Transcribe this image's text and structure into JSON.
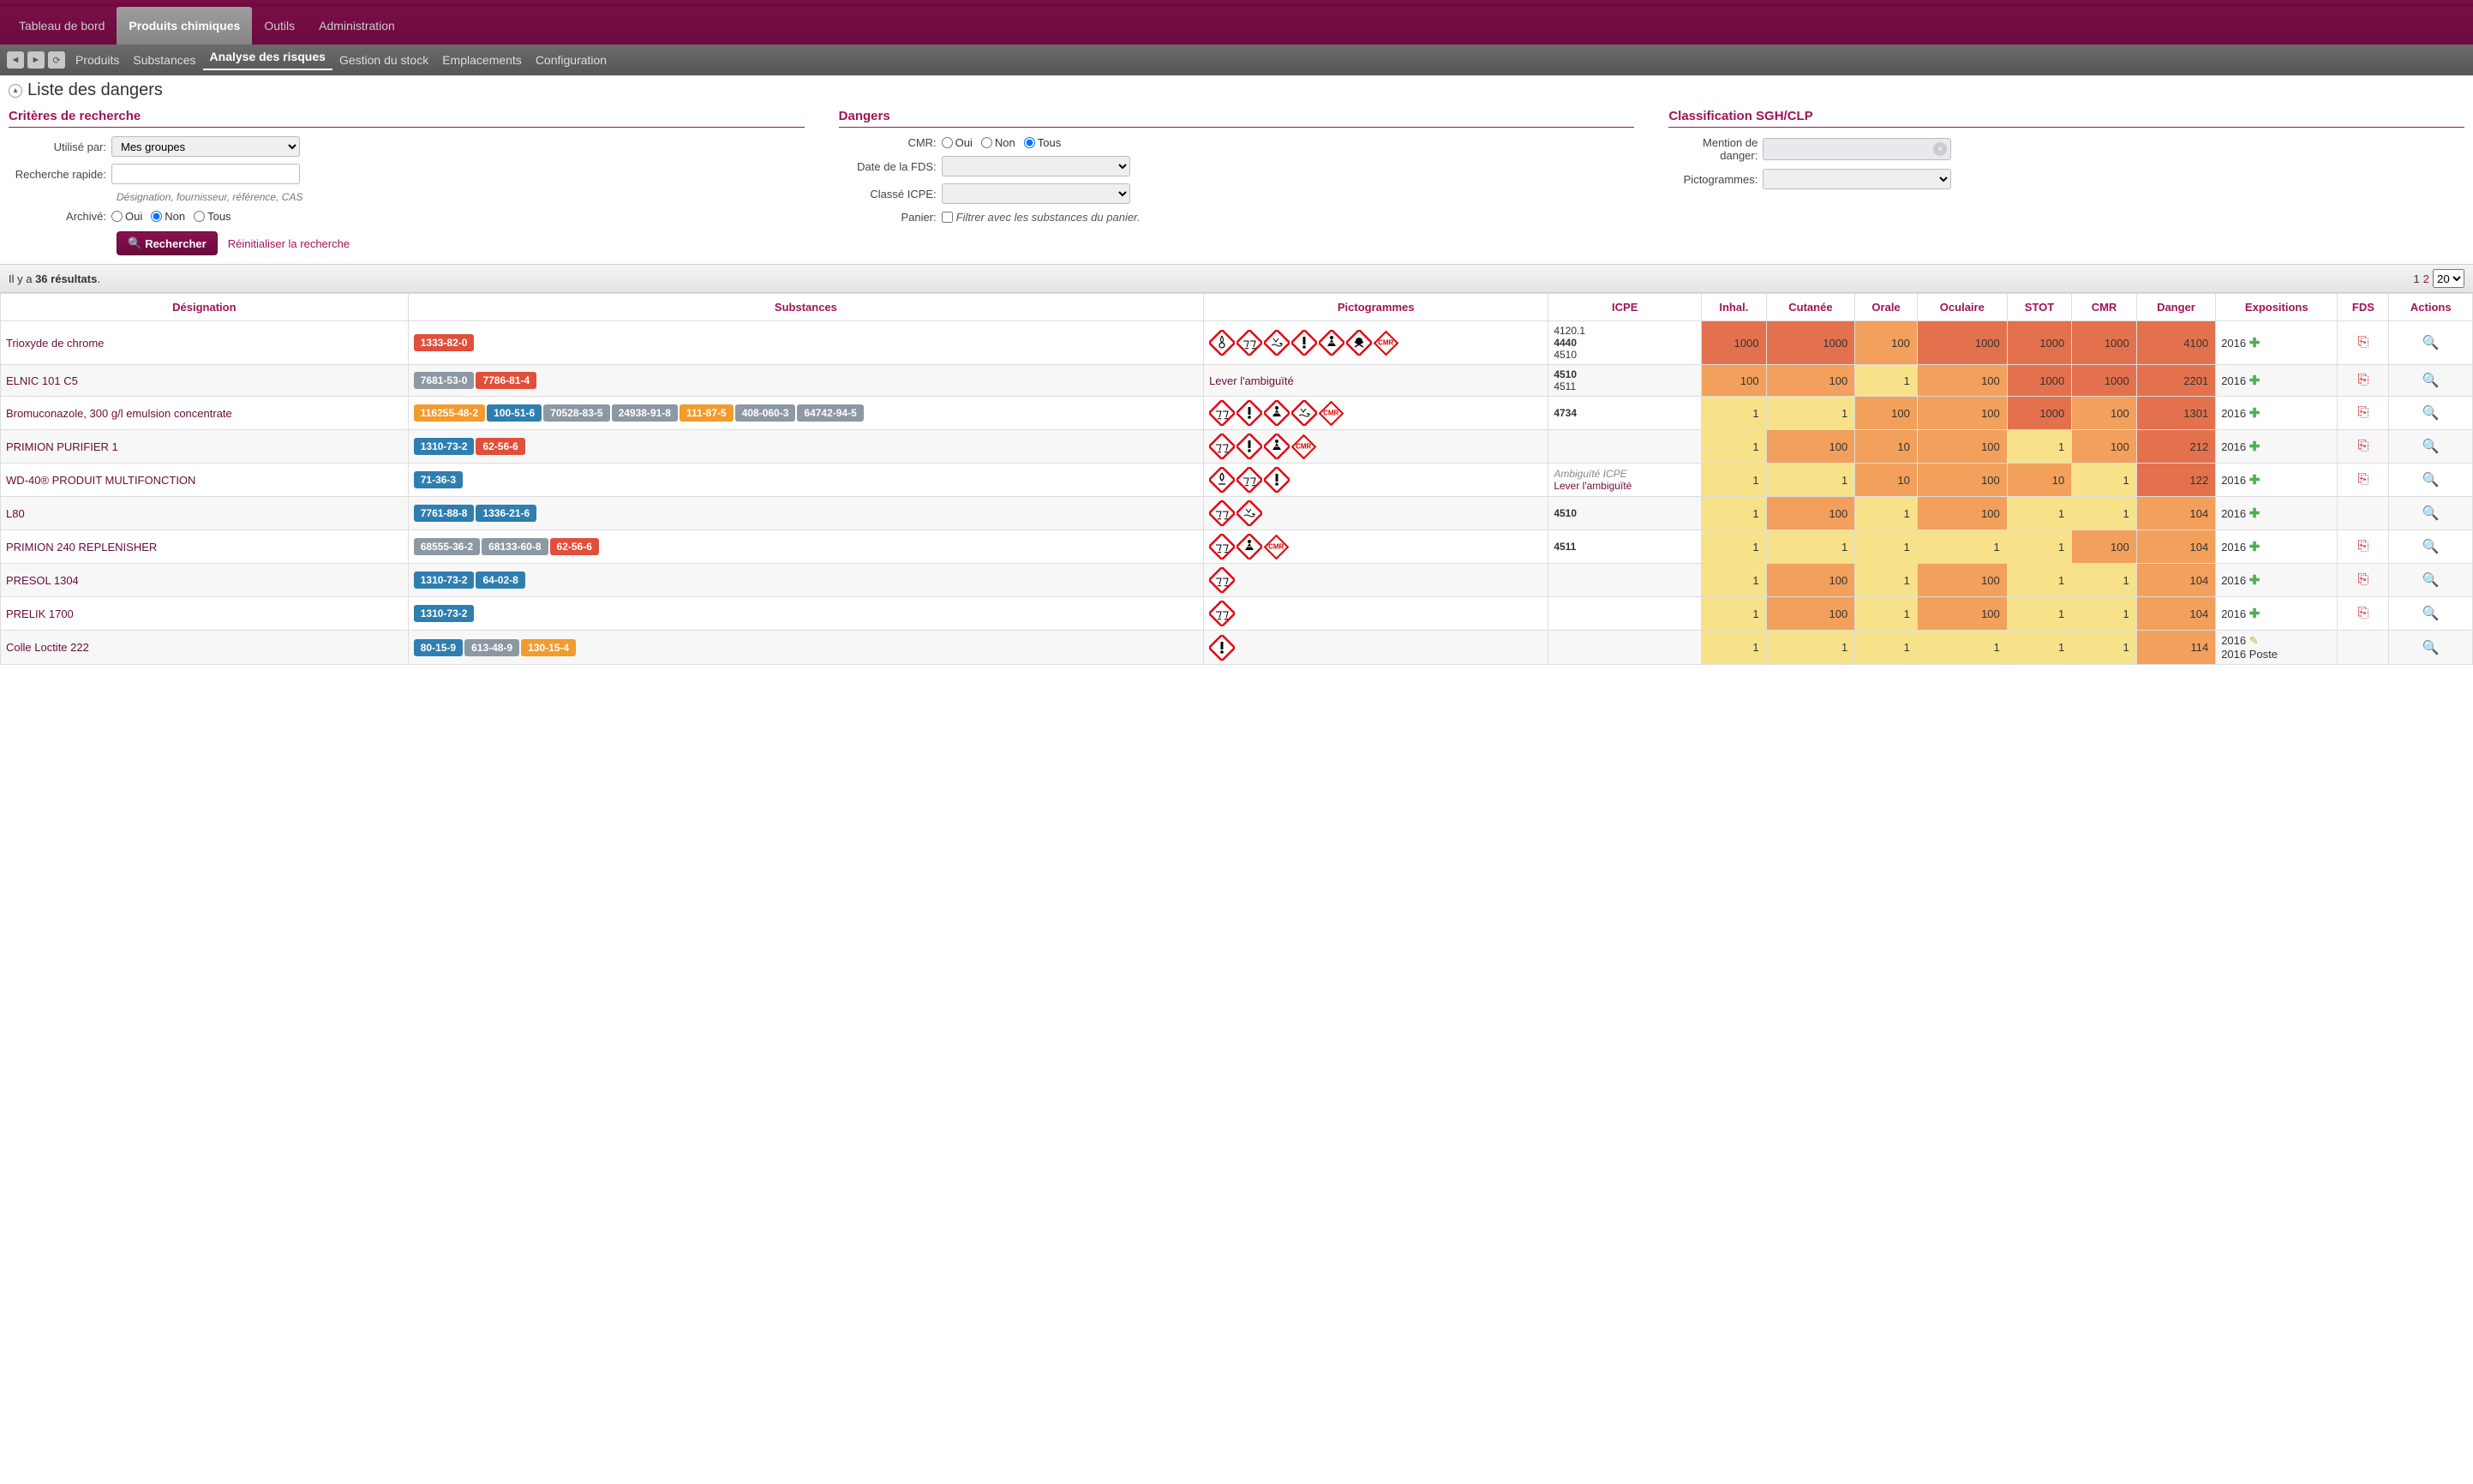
{
  "nav": {
    "main_tabs": [
      "Tableau de bord",
      "Produits chimiques",
      "Outils",
      "Administration"
    ],
    "main_active": 1,
    "sub_tabs": [
      "Produits",
      "Substances",
      "Analyse des risques",
      "Gestion du stock",
      "Emplacements",
      "Configuration"
    ],
    "sub_active": 2
  },
  "page_title": "Liste des dangers",
  "filters": {
    "criteria_heading": "Critères de recherche",
    "used_by_label": "Utilisé par:",
    "used_by_value": "Mes groupes",
    "quick_search_label": "Recherche rapide:",
    "quick_search_hint": "Désignation, fournisseur, référence, CAS",
    "archived_label": "Archivé:",
    "radio_yes": "Oui",
    "radio_no": "Non",
    "radio_all": "Tous",
    "search_button": "Rechercher",
    "reset_link": "Réinitialiser la recherche",
    "dangers_heading": "Dangers",
    "cmr_label": "CMR:",
    "fds_date_label": "Date de la FDS:",
    "icpe_label": "Classé ICPE:",
    "basket_label": "Panier:",
    "basket_checkbox": "Filtrer avec les substances du panier.",
    "sgh_heading": "Classification SGH/CLP",
    "mention_label": "Mention de danger:",
    "picto_label": "Pictogrammes:"
  },
  "results": {
    "prefix": "Il y a ",
    "count": "36 résultats",
    "suffix": ".",
    "page_current": "1",
    "page_next": "2",
    "page_size": "20"
  },
  "table": {
    "headers": {
      "designation": "Désignation",
      "substances": "Substances",
      "pictograms": "Pictogrammes",
      "icpe": "ICPE",
      "inhal": "Inhal.",
      "cutanee": "Cutanée",
      "orale": "Orale",
      "oculaire": "Oculaire",
      "stot": "STOT",
      "cmr": "CMR",
      "danger": "Danger",
      "expositions": "Expositions",
      "fds": "FDS",
      "actions": "Actions"
    }
  },
  "chip_colors": {
    "red": "#e04f3a",
    "orange": "#f29b2e",
    "grey": "#8d98a3",
    "blue": "#2e7fb0"
  },
  "risk_colors": {
    "red": "#e4714d",
    "orange": "#f2a05b",
    "yellow": "#f7e28a"
  },
  "ghs_symbols": {
    "corrosion": "corrosion",
    "skull": "skull",
    "aquatic": "aquatic",
    "exclaim": "exclaim",
    "health": "health",
    "flame": "flame",
    "cmr": "cmr"
  },
  "rows": [
    {
      "designation": "Trioxyde de chrome",
      "substances": [
        {
          "cas": "1333-82-0",
          "c": "red"
        }
      ],
      "pictos": [
        "flame-circle",
        "corrosion",
        "aquatic",
        "exclaim",
        "health",
        "skull",
        "cmr"
      ],
      "icpe": [
        "4120.1",
        "4440",
        "4510"
      ],
      "icpe_bold": 1,
      "risk": {
        "inhal": [
          "1000",
          "red"
        ],
        "cutanee": [
          "1000",
          "red"
        ],
        "orale": [
          "100",
          "orange"
        ],
        "oculaire": [
          "1000",
          "red"
        ],
        "stot": [
          "1000",
          "red"
        ],
        "cmr": [
          "1000",
          "red"
        ],
        "danger": [
          "4100",
          "red"
        ]
      },
      "expo": "2016",
      "expo_plus": true,
      "fds": true
    },
    {
      "designation": "ELNIC 101 C5",
      "substances": [
        {
          "cas": "7681-53-0",
          "c": "grey"
        },
        {
          "cas": "7786-81-4",
          "c": "red"
        }
      ],
      "pictos": [],
      "picto_text": "Lever l'ambiguïté",
      "icpe": [
        "4510",
        "4511"
      ],
      "icpe_bold": 0,
      "risk": {
        "inhal": [
          "100",
          "orange"
        ],
        "cutanee": [
          "100",
          "orange"
        ],
        "orale": [
          "1",
          "yellow"
        ],
        "oculaire": [
          "100",
          "orange"
        ],
        "stot": [
          "1000",
          "red"
        ],
        "cmr": [
          "1000",
          "red"
        ],
        "danger": [
          "2201",
          "red"
        ]
      },
      "expo": "2016",
      "expo_plus": true,
      "fds": true
    },
    {
      "designation": "Bromuconazole, 300 g/l emulsion concentrate",
      "substances": [
        {
          "cas": "116255-48-2",
          "c": "orange"
        },
        {
          "cas": "100-51-6",
          "c": "blue"
        },
        {
          "cas": "70528-83-5",
          "c": "grey"
        },
        {
          "cas": "24938-91-8",
          "c": "grey"
        },
        {
          "cas": "111-87-5",
          "c": "orange"
        },
        {
          "cas": "408-060-3",
          "c": "grey"
        },
        {
          "cas": "64742-94-5",
          "c": "grey"
        }
      ],
      "pictos": [
        "corrosion",
        "exclaim",
        "health",
        "aquatic",
        "cmr"
      ],
      "icpe": [
        "4734"
      ],
      "icpe_bold": 0,
      "risk": {
        "inhal": [
          "1",
          "yellow"
        ],
        "cutanee": [
          "1",
          "yellow"
        ],
        "orale": [
          "100",
          "orange"
        ],
        "oculaire": [
          "100",
          "orange"
        ],
        "stot": [
          "1000",
          "red"
        ],
        "cmr": [
          "100",
          "orange"
        ],
        "danger": [
          "1301",
          "red"
        ]
      },
      "expo": "2016",
      "expo_plus": true,
      "fds": true
    },
    {
      "designation": "PRIMION PURIFIER 1",
      "substances": [
        {
          "cas": "1310-73-2",
          "c": "blue"
        },
        {
          "cas": "62-56-6",
          "c": "red"
        }
      ],
      "pictos": [
        "corrosion",
        "exclaim",
        "health",
        "cmr"
      ],
      "icpe": [],
      "risk": {
        "inhal": [
          "1",
          "yellow"
        ],
        "cutanee": [
          "100",
          "orange"
        ],
        "orale": [
          "10",
          "orange"
        ],
        "oculaire": [
          "100",
          "orange"
        ],
        "stot": [
          "1",
          "yellow"
        ],
        "cmr": [
          "100",
          "orange"
        ],
        "danger": [
          "212",
          "red"
        ]
      },
      "expo": "2016",
      "expo_plus": true,
      "fds": true
    },
    {
      "designation": "WD-40® PRODUIT MULTIFONCTION",
      "substances": [
        {
          "cas": "71-36-3",
          "c": "blue"
        }
      ],
      "pictos": [
        "flame",
        "corrosion",
        "exclaim"
      ],
      "icpe_ambig": "Ambiguïté ICPE",
      "icpe_link": "Lever l'ambiguïté",
      "risk": {
        "inhal": [
          "1",
          "yellow"
        ],
        "cutanee": [
          "1",
          "yellow"
        ],
        "orale": [
          "10",
          "orange"
        ],
        "oculaire": [
          "100",
          "orange"
        ],
        "stot": [
          "10",
          "orange"
        ],
        "cmr": [
          "1",
          "yellow"
        ],
        "danger": [
          "122",
          "red"
        ]
      },
      "expo": "2016",
      "expo_plus": true,
      "fds": true
    },
    {
      "designation": "L80",
      "substances": [
        {
          "cas": "7761-88-8",
          "c": "blue"
        },
        {
          "cas": "1336-21-6",
          "c": "blue"
        }
      ],
      "pictos": [
        "corrosion",
        "aquatic"
      ],
      "icpe": [
        "4510"
      ],
      "icpe_bold": 0,
      "risk": {
        "inhal": [
          "1",
          "yellow"
        ],
        "cutanee": [
          "100",
          "orange"
        ],
        "orale": [
          "1",
          "yellow"
        ],
        "oculaire": [
          "100",
          "orange"
        ],
        "stot": [
          "1",
          "yellow"
        ],
        "cmr": [
          "1",
          "yellow"
        ],
        "danger": [
          "104",
          "orange"
        ]
      },
      "expo": "2016",
      "expo_plus": true,
      "fds": false
    },
    {
      "designation": "PRIMION 240 REPLENISHER",
      "substances": [
        {
          "cas": "68555-36-2",
          "c": "grey"
        },
        {
          "cas": "68133-60-8",
          "c": "grey"
        },
        {
          "cas": "62-56-6",
          "c": "red"
        }
      ],
      "pictos": [
        "corrosion",
        "health",
        "cmr"
      ],
      "icpe": [
        "4511"
      ],
      "icpe_bold": 0,
      "risk": {
        "inhal": [
          "1",
          "yellow"
        ],
        "cutanee": [
          "1",
          "yellow"
        ],
        "orale": [
          "1",
          "yellow"
        ],
        "oculaire": [
          "1",
          "yellow"
        ],
        "stot": [
          "1",
          "yellow"
        ],
        "cmr": [
          "100",
          "orange"
        ],
        "danger": [
          "104",
          "orange"
        ]
      },
      "expo": "2016",
      "expo_plus": true,
      "fds": true
    },
    {
      "designation": "PRESOL 1304",
      "substances": [
        {
          "cas": "1310-73-2",
          "c": "blue"
        },
        {
          "cas": "64-02-8",
          "c": "blue"
        }
      ],
      "pictos": [
        "corrosion"
      ],
      "icpe": [],
      "risk": {
        "inhal": [
          "1",
          "yellow"
        ],
        "cutanee": [
          "100",
          "orange"
        ],
        "orale": [
          "1",
          "yellow"
        ],
        "oculaire": [
          "100",
          "orange"
        ],
        "stot": [
          "1",
          "yellow"
        ],
        "cmr": [
          "1",
          "yellow"
        ],
        "danger": [
          "104",
          "orange"
        ]
      },
      "expo": "2016",
      "expo_plus": true,
      "fds": true
    },
    {
      "designation": "PRELIK 1700",
      "substances": [
        {
          "cas": "1310-73-2",
          "c": "blue"
        }
      ],
      "pictos": [
        "corrosion"
      ],
      "icpe": [],
      "risk": {
        "inhal": [
          "1",
          "yellow"
        ],
        "cutanee": [
          "100",
          "orange"
        ],
        "orale": [
          "1",
          "yellow"
        ],
        "oculaire": [
          "100",
          "orange"
        ],
        "stot": [
          "1",
          "yellow"
        ],
        "cmr": [
          "1",
          "yellow"
        ],
        "danger": [
          "104",
          "orange"
        ]
      },
      "expo": "2016",
      "expo_plus": true,
      "fds": true
    },
    {
      "designation": "Colle Loctite 222",
      "substances": [
        {
          "cas": "80-15-9",
          "c": "blue"
        },
        {
          "cas": "613-48-9",
          "c": "grey"
        },
        {
          "cas": "130-15-4",
          "c": "orange"
        }
      ],
      "pictos": [
        "exclaim"
      ],
      "icpe": [],
      "risk": {
        "inhal": [
          "1",
          "yellow"
        ],
        "cutanee": [
          "1",
          "yellow"
        ],
        "orale": [
          "1",
          "yellow"
        ],
        "oculaire": [
          "1",
          "yellow"
        ],
        "stot": [
          "1",
          "yellow"
        ],
        "cmr": [
          "1",
          "yellow"
        ],
        "danger": [
          "114",
          "orange"
        ]
      },
      "expo_multi": [
        {
          "y": "2016",
          "edit": true
        },
        {
          "y": "2016",
          "label": "Poste"
        }
      ],
      "fds": false
    }
  ]
}
